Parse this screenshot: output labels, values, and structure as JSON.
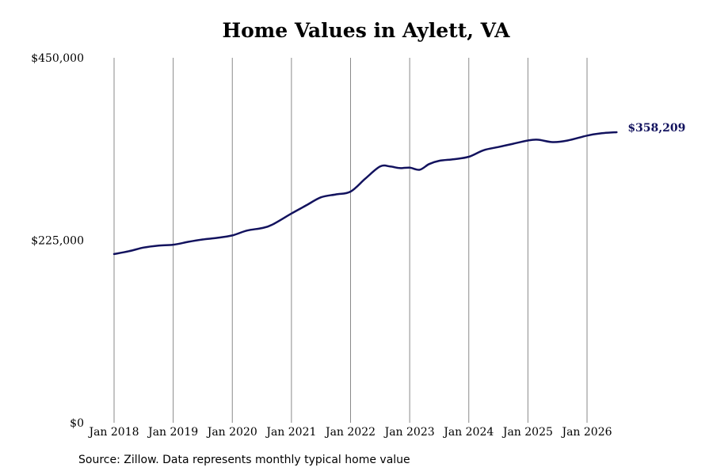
{
  "chart_data": {
    "type": "line",
    "title": "Home Values in Aylett, VA",
    "xlabel": "",
    "ylabel": "",
    "ylim": [
      0,
      450000
    ],
    "y_ticks": [
      {
        "value": 0,
        "label": "$0"
      },
      {
        "value": 225000,
        "label": "$225,000"
      },
      {
        "value": 450000,
        "label": "$450,000"
      }
    ],
    "x_ticks": [
      {
        "value": 2018.0,
        "label": "Jan 2018"
      },
      {
        "value": 2019.0,
        "label": "Jan 2019"
      },
      {
        "value": 2020.0,
        "label": "Jan 2020"
      },
      {
        "value": 2021.0,
        "label": "Jan 2021"
      },
      {
        "value": 2022.0,
        "label": "Jan 2022"
      },
      {
        "value": 2023.0,
        "label": "Jan 2023"
      },
      {
        "value": 2024.0,
        "label": "Jan 2024"
      },
      {
        "value": 2025.0,
        "label": "Jan 2025"
      },
      {
        "value": 2026.0,
        "label": "Jan 2026"
      }
    ],
    "grid": "vertical",
    "line_color": "#12125e",
    "end_label": "$358,209",
    "series": [
      {
        "x": [
          2018.0,
          2018.25,
          2018.5,
          2018.75,
          2019.0,
          2019.25,
          2019.5,
          2019.75,
          2020.0,
          2020.25,
          2020.5,
          2020.67,
          2021.0,
          2021.25,
          2021.5,
          2021.75,
          2022.0,
          2022.25,
          2022.5,
          2022.67,
          2022.83,
          2023.0,
          2023.17,
          2023.33,
          2023.5,
          2023.75,
          2024.0,
          2024.25,
          2024.5,
          2024.75,
          2025.0,
          2025.17,
          2025.42,
          2025.67,
          2026.0,
          2026.25,
          2026.5
        ],
        "values": [
          208000,
          211500,
          216000,
          218500,
          219500,
          223000,
          226000,
          228000,
          231000,
          237000,
          240000,
          244000,
          258000,
          268000,
          278000,
          281500,
          285000,
          301000,
          316000,
          316000,
          314000,
          314500,
          312000,
          319000,
          323000,
          325000,
          328000,
          336000,
          340000,
          344000,
          348000,
          349000,
          346000,
          348000,
          354000,
          357000,
          358209
        ]
      }
    ]
  },
  "source": "Source: Zillow. Data represents monthly typical home value"
}
